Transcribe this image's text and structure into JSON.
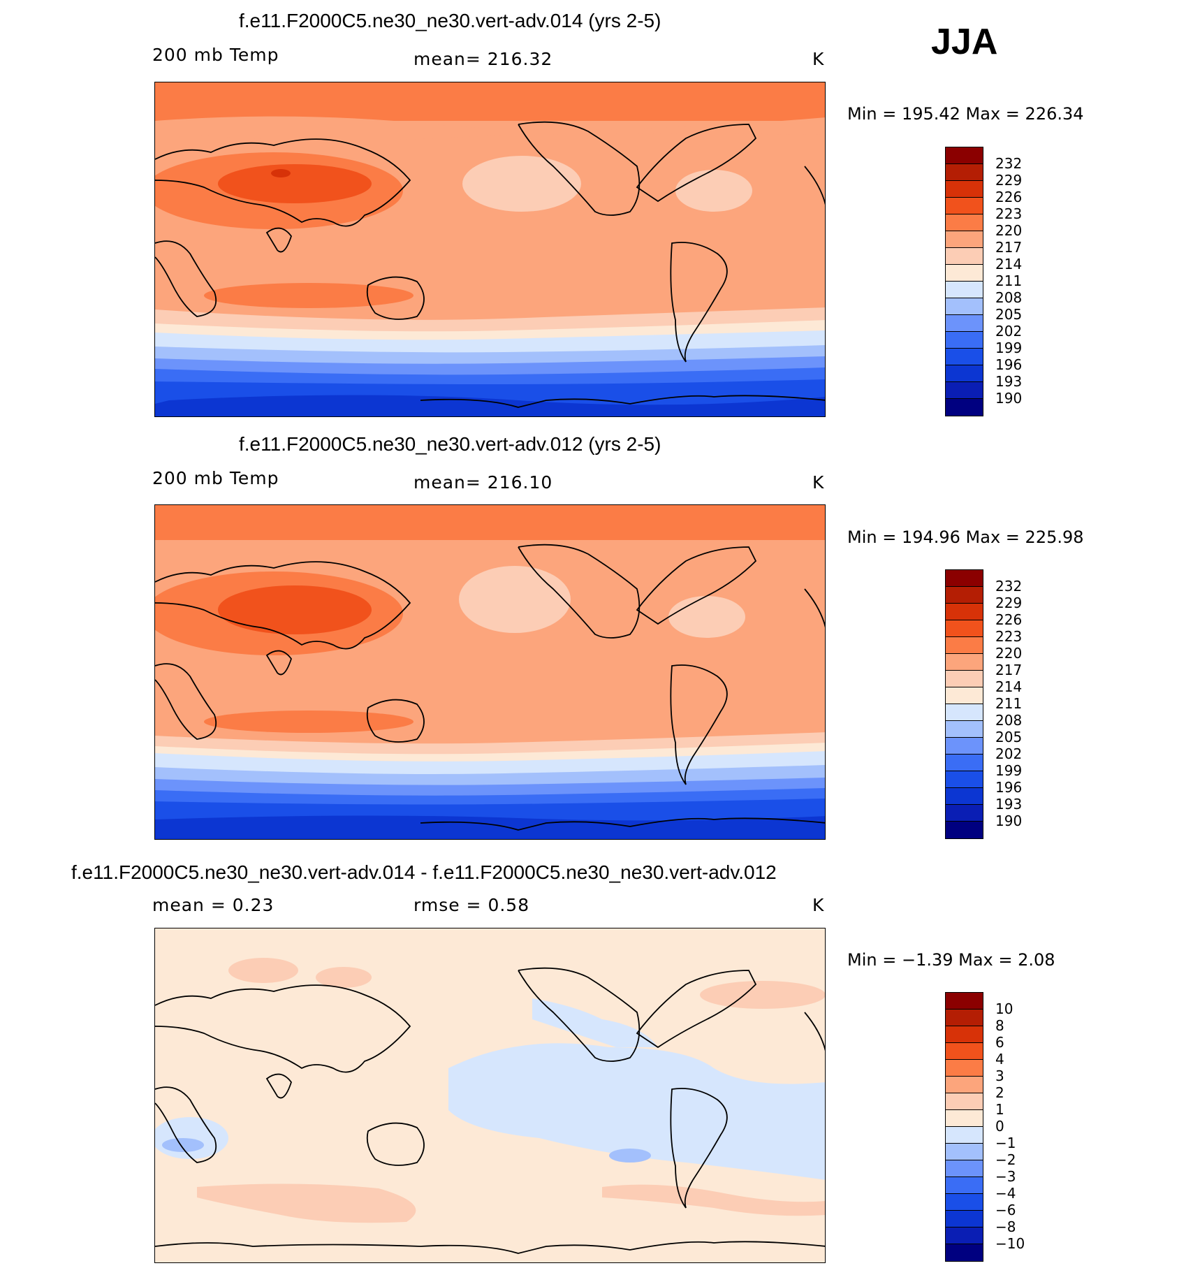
{
  "season": "JJA",
  "colors": {
    "temp_levels": [
      "#000080",
      "#0a1eb4",
      "#0c36d2",
      "#1a4fe8",
      "#3a6df5",
      "#6c93fb",
      "#a3c0fc",
      "#d6e6fd",
      "#fde9d6",
      "#fccdb5",
      "#fca57c",
      "#fb7c46",
      "#f1521c",
      "#d73208",
      "#b41e04",
      "#8b0000"
    ],
    "land_outline": "#000000"
  },
  "panels": [
    {
      "title": "f.e11.F2000C5.ne30_ne30.vert-adv.014 (yrs 2-5)",
      "left_label": "200 mb Temp",
      "center_label": "mean=  216.32",
      "units": "K",
      "minmax": "Min  =  195.42  Max  =  226.34",
      "colorbar_labels": [
        "232",
        "229",
        "226",
        "223",
        "220",
        "217",
        "214",
        "211",
        "208",
        "205",
        "202",
        "199",
        "196",
        "193",
        "190"
      ]
    },
    {
      "title": "f.e11.F2000C5.ne30_ne30.vert-adv.012 (yrs 2-5)",
      "left_label": "200 mb Temp",
      "center_label": "mean=  216.10",
      "units": "K",
      "minmax": "Min  =  194.96  Max  =  225.98",
      "colorbar_labels": [
        "232",
        "229",
        "226",
        "223",
        "220",
        "217",
        "214",
        "211",
        "208",
        "205",
        "202",
        "199",
        "196",
        "193",
        "190"
      ]
    },
    {
      "title": "f.e11.F2000C5.ne30_ne30.vert-adv.014 - f.e11.F2000C5.ne30_ne30.vert-adv.012",
      "left_label": "mean  =      0.23",
      "center_label": "rmse  =      0.58",
      "units": "K",
      "minmax": "Min  =    −1.39  Max  =      2.08",
      "colorbar_labels": [
        "10",
        "8",
        "6",
        "4",
        "3",
        "2",
        "1",
        "0",
        "−1",
        "−2",
        "−3",
        "−4",
        "−6",
        "−8",
        "−10"
      ]
    }
  ]
}
